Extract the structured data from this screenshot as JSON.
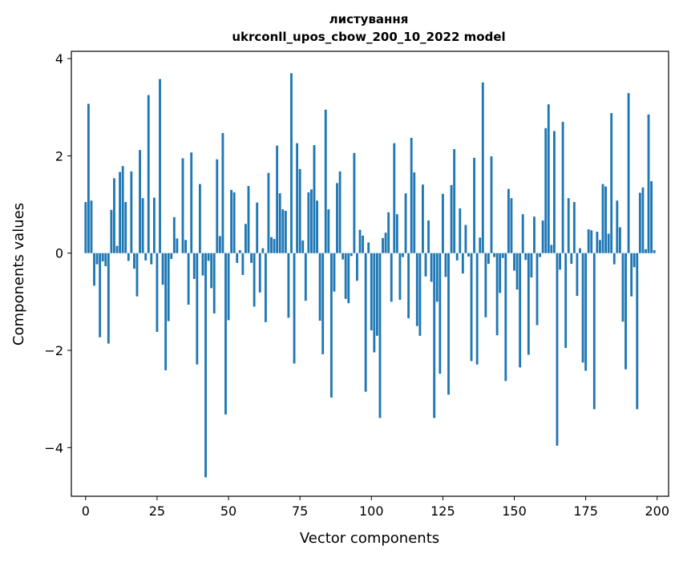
{
  "chart_data": {
    "type": "bar",
    "title_line1": "листування",
    "title_line2": "ukrconll_upos_cbow_200_10_2022 model",
    "xlabel": "Vector components",
    "ylabel": "Components values",
    "xlim": [
      -5,
      204
    ],
    "ylim": [
      -5.0,
      4.15
    ],
    "xticks": [
      0,
      25,
      50,
      75,
      100,
      125,
      150,
      175,
      200
    ],
    "yticks": [
      -4,
      -2,
      0,
      2,
      4
    ],
    "xtick_labels": [
      "0",
      "25",
      "50",
      "75",
      "100",
      "125",
      "150",
      "175",
      "200"
    ],
    "ytick_labels": [
      "−4",
      "−2",
      "0",
      "2",
      "4"
    ],
    "bar_color": "#1f77b4",
    "grid": false,
    "values": [
      1.05,
      3.07,
      1.08,
      -0.67,
      -0.23,
      -1.73,
      -0.17,
      -0.27,
      -1.86,
      0.89,
      1.54,
      0.15,
      1.67,
      1.79,
      1.05,
      -0.16,
      1.68,
      -0.32,
      -0.89,
      2.12,
      1.13,
      -0.15,
      3.25,
      -0.23,
      1.14,
      -1.62,
      3.58,
      -0.65,
      -2.41,
      -1.4,
      -0.12,
      0.74,
      0.3,
      0.0,
      1.95,
      0.27,
      -1.06,
      2.07,
      -0.53,
      -2.29,
      1.42,
      -0.46,
      -4.61,
      -0.16,
      -0.72,
      -1.24,
      1.93,
      0.35,
      2.47,
      -3.32,
      -1.38,
      1.3,
      1.25,
      -0.2,
      0.06,
      -0.45,
      0.6,
      1.38,
      -0.2,
      -1.1,
      1.04,
      -0.81,
      0.1,
      -1.42,
      1.65,
      0.33,
      0.29,
      2.21,
      1.23,
      0.9,
      0.87,
      -1.33,
      3.7,
      -2.27,
      2.26,
      1.73,
      0.26,
      -0.98,
      1.25,
      1.31,
      2.22,
      1.08,
      -1.39,
      -2.08,
      2.95,
      0.9,
      -2.97,
      -0.79,
      1.44,
      1.68,
      -0.13,
      -0.94,
      -1.03,
      -0.06,
      2.06,
      -0.57,
      0.48,
      0.36,
      -2.85,
      0.22,
      -1.59,
      -2.04,
      -1.7,
      -3.39,
      0.31,
      0.42,
      0.84,
      -1.0,
      2.26,
      0.8,
      -0.96,
      -0.08,
      1.23,
      -1.34,
      2.37,
      1.66,
      -1.5,
      -1.7,
      1.41,
      -0.48,
      0.67,
      -0.59,
      -3.39,
      -1.0,
      -2.48,
      1.22,
      -0.49,
      -2.91,
      1.4,
      2.14,
      -0.15,
      0.92,
      -0.42,
      0.58,
      -0.07,
      -2.22,
      1.96,
      -2.29,
      0.32,
      3.51,
      -1.32,
      -0.22,
      1.99,
      -0.08,
      -1.69,
      -0.82,
      -0.1,
      -2.63,
      1.32,
      1.13,
      -0.36,
      -0.75,
      -2.35,
      0.8,
      -0.14,
      -2.09,
      -0.5,
      0.75,
      -1.48,
      -0.08,
      0.67,
      2.57,
      3.06,
      0.17,
      2.51,
      -3.96,
      -0.34,
      2.7,
      -1.95,
      1.13,
      -0.22,
      1.05,
      -0.88,
      0.1,
      -2.25,
      -2.42,
      0.49,
      0.47,
      -3.21,
      0.44,
      0.27,
      1.42,
      1.37,
      0.4,
      2.88,
      -0.23,
      1.08,
      0.53,
      -1.41,
      -2.39,
      3.29,
      -0.89,
      -0.29,
      -3.21,
      1.24,
      1.35,
      0.08,
      2.85,
      1.48,
      0.06
    ]
  }
}
